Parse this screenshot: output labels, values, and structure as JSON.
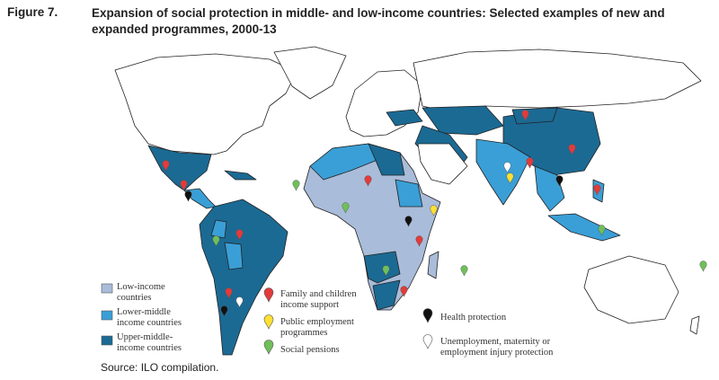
{
  "figure": {
    "label": "Figure 7.",
    "title": "Expansion of social protection in middle- and low-income countries: Selected examples of new and expanded programmes, 2000-13"
  },
  "legend": {
    "income": [
      "Low-income countries",
      "Lower-middle income countries",
      "Upper-middle-income countries"
    ],
    "programmes": [
      "Family and children income support",
      "Public employment programmes",
      "Social pensions",
      "Health protection",
      "Unemployment, maternity or employment injury protection"
    ]
  },
  "source": "Source: ILO compilation."
}
